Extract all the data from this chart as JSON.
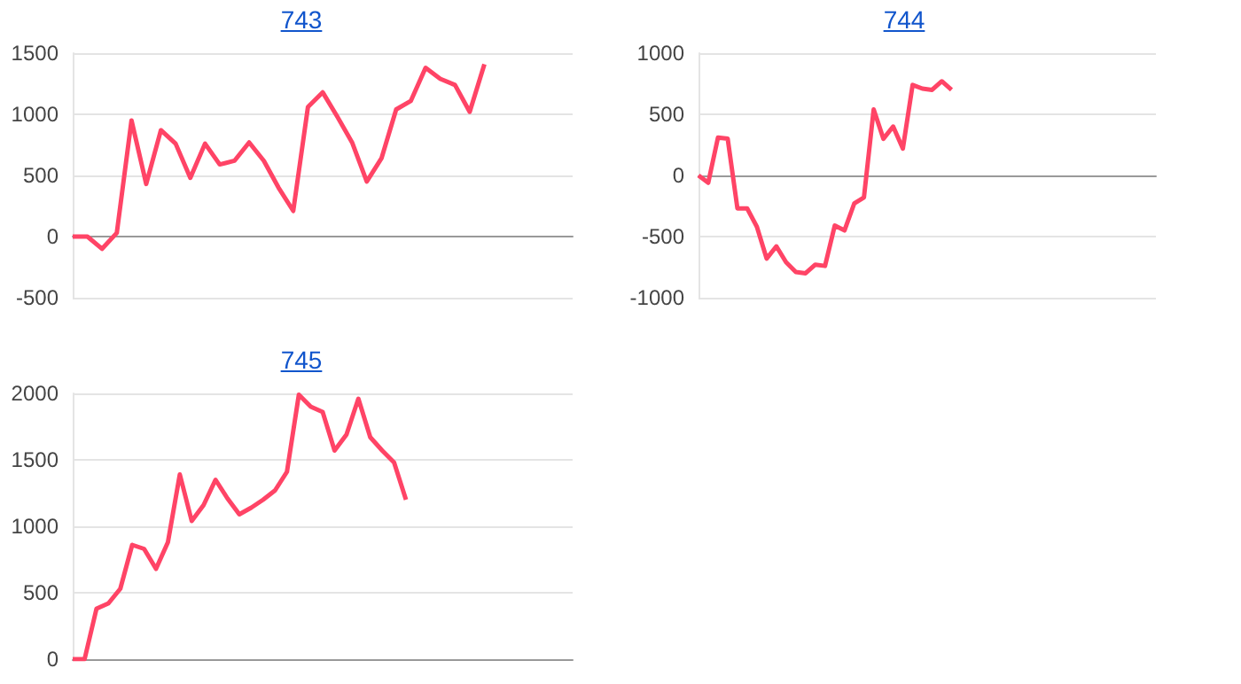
{
  "chart_data": [
    {
      "type": "line",
      "title": "743",
      "categories": [
        null,
        null,
        null,
        null,
        null,
        null,
        null,
        null,
        null,
        null,
        null,
        null,
        null,
        null,
        null,
        null,
        null,
        null,
        null,
        null,
        null,
        null,
        null,
        null,
        null,
        null,
        null,
        null,
        null,
        null,
        null,
        null,
        null,
        null,
        null
      ],
      "series": [
        {
          "color": "#ff4466",
          "values": [
            0,
            0,
            -100,
            30,
            950,
            430,
            870,
            760,
            480,
            760,
            590,
            620,
            770,
            620,
            400,
            210,
            1060,
            1180,
            980,
            770,
            450,
            640,
            1040,
            1110,
            1380,
            1290,
            1240,
            1020,
            1410,
            null,
            null,
            null,
            null,
            null,
            null
          ]
        }
      ],
      "ylim": [
        -500,
        1500
      ],
      "yticks": [
        -500,
        0,
        500,
        1000,
        1500
      ],
      "grid": "y"
    },
    {
      "type": "line",
      "title": "744",
      "categories": [
        null,
        null,
        null,
        null,
        null,
        null,
        null,
        null,
        null,
        null,
        null,
        null,
        null,
        null,
        null,
        null,
        null,
        null,
        null,
        null,
        null,
        null,
        null,
        null,
        null,
        null,
        null,
        null,
        null,
        null,
        null,
        null,
        null,
        null,
        null,
        null,
        null,
        null,
        null,
        null,
        null,
        null,
        null,
        null,
        null,
        null,
        null,
        null
      ],
      "series": [
        {
          "color": "#ff4466",
          "values": [
            0,
            -60,
            310,
            300,
            -270,
            -270,
            -420,
            -680,
            -580,
            -710,
            -790,
            -800,
            -730,
            -740,
            -410,
            -450,
            -230,
            -180,
            540,
            300,
            400,
            220,
            740,
            710,
            700,
            770,
            700,
            null,
            null,
            null,
            null,
            null,
            null,
            null,
            null,
            null,
            null,
            null,
            null,
            null,
            null,
            null,
            null,
            null,
            null,
            null,
            null,
            null
          ]
        }
      ],
      "ylim": [
        -1000,
        1000
      ],
      "yticks": [
        -1000,
        -500,
        0,
        500,
        1000
      ],
      "grid": "y"
    },
    {
      "type": "line",
      "title": "745",
      "categories": [
        null,
        null,
        null,
        null,
        null,
        null,
        null,
        null,
        null,
        null,
        null,
        null,
        null,
        null,
        null,
        null,
        null,
        null,
        null,
        null,
        null,
        null,
        null,
        null,
        null,
        null,
        null,
        null,
        null,
        null,
        null,
        null,
        null,
        null,
        null,
        null,
        null,
        null,
        null,
        null,
        null,
        null,
        null
      ],
      "series": [
        {
          "color": "#ff4466",
          "values": [
            0,
            0,
            380,
            420,
            530,
            860,
            830,
            680,
            880,
            1390,
            1040,
            1160,
            1350,
            1210,
            1090,
            1140,
            1200,
            1270,
            1410,
            1990,
            1900,
            1860,
            1570,
            1690,
            1960,
            1670,
            1570,
            1480,
            1200,
            null,
            null,
            null,
            null,
            null,
            null,
            null,
            null,
            null,
            null,
            null,
            null,
            null,
            null
          ]
        }
      ],
      "ylim": [
        0,
        2000
      ],
      "yticks": [
        0,
        500,
        1000,
        1500,
        2000
      ],
      "grid": "y"
    }
  ]
}
